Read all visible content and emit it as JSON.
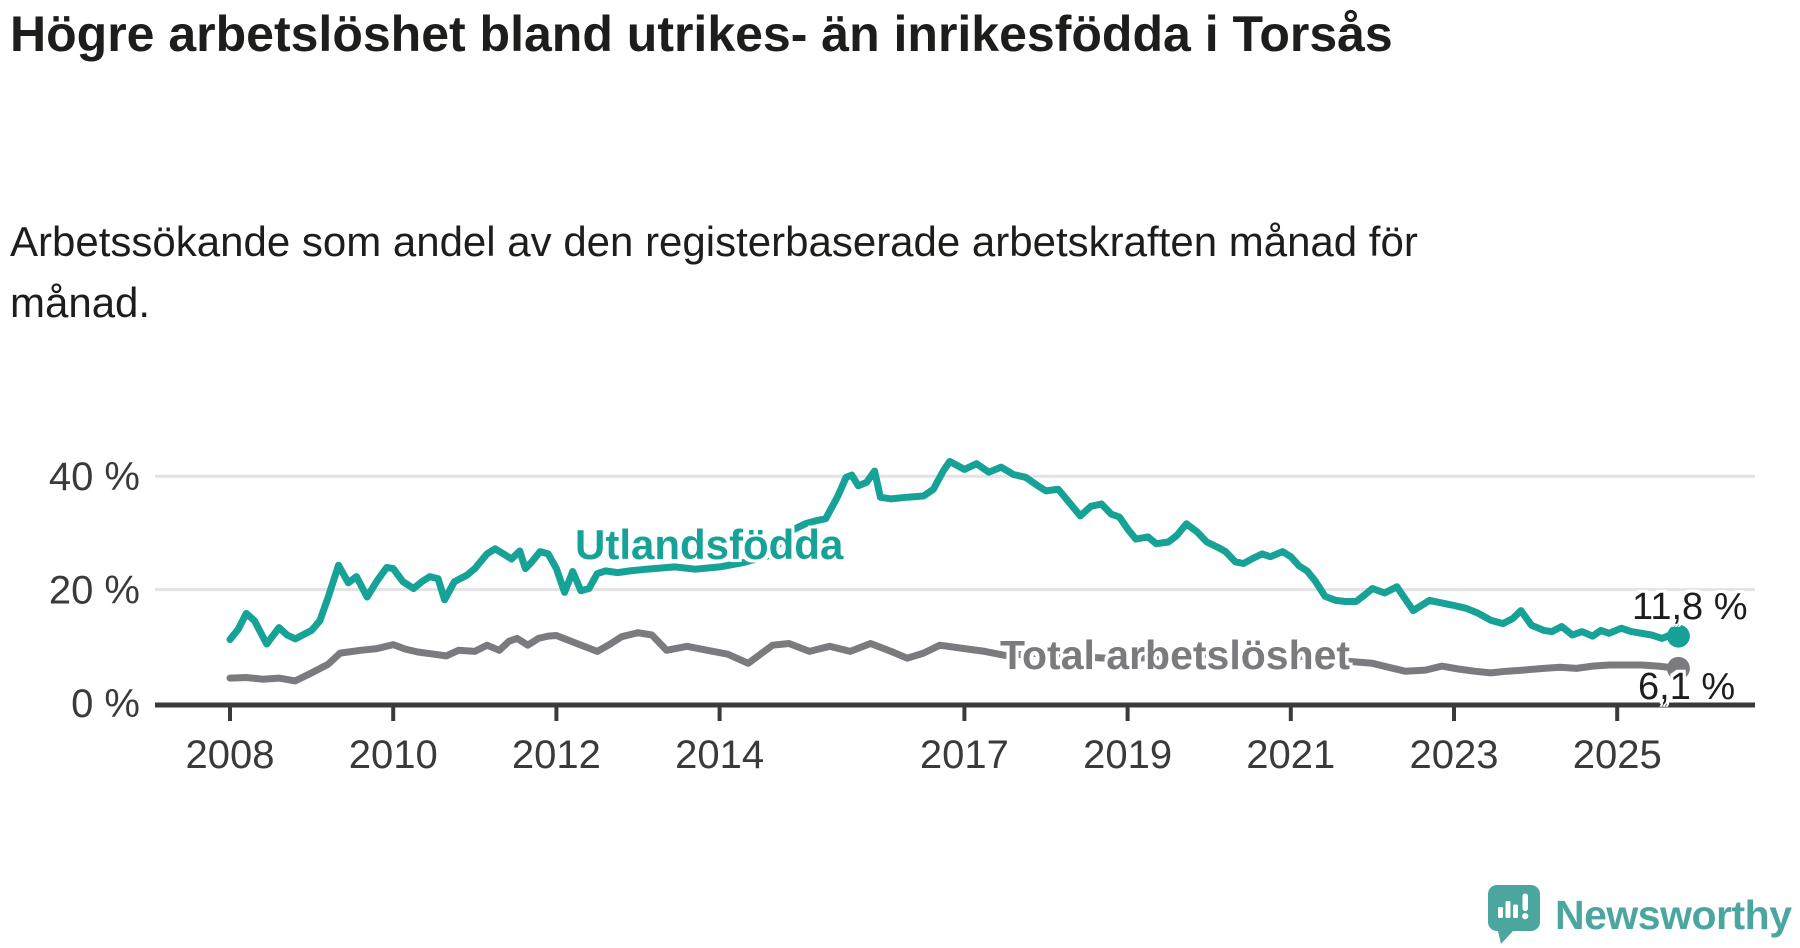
{
  "header": {
    "title": "Högre arbetslöshet bland utrikes- än inrikesfödda i Torsås",
    "subtitle": "Arbetssökande som andel av den registerbaserade arbetskraften månad för månad."
  },
  "footer": {
    "brand": "Newsworthy"
  },
  "colors": {
    "foreign_born_line": "#16a296",
    "total_line": "#7b7b7f",
    "axis": "#3a3a3a",
    "gridline": "#e3e3e3",
    "text": "#1d1d1b",
    "brand_teal": "#4ca6a0"
  },
  "chart_data": {
    "type": "line",
    "title": "Högre arbetslöshet bland utrikes- än inrikesfödda i Torsås",
    "subtitle": "Arbetssökande som andel av den registerbaserade arbetskraften månad för månad.",
    "xlabel": "",
    "ylabel": "",
    "xlim": [
      2007.6,
      2026.2
    ],
    "ylim": [
      0,
      45
    ],
    "grid": "horizontal",
    "legend_position": "inline-labels",
    "x_ticks": [
      {
        "value": 2008,
        "label": "2008"
      },
      {
        "value": 2010,
        "label": "2010"
      },
      {
        "value": 2012,
        "label": "2012"
      },
      {
        "value": 2014,
        "label": "2014"
      },
      {
        "value": 2017,
        "label": "2017"
      },
      {
        "value": 2019,
        "label": "2019"
      },
      {
        "value": 2021,
        "label": "2021"
      },
      {
        "value": 2023,
        "label": "2023"
      },
      {
        "value": 2025,
        "label": "2025"
      }
    ],
    "y_ticks": [
      {
        "value": 0,
        "label": "0 %"
      },
      {
        "value": 20,
        "label": "20 %"
      },
      {
        "value": 40,
        "label": "40 %"
      }
    ],
    "series": [
      {
        "name": "Utlandsfödda",
        "color": "#16a296",
        "end_label": "11,8 %",
        "end_value": 11.8,
        "points": [
          [
            2008.0,
            11.2
          ],
          [
            2008.1,
            13.0
          ],
          [
            2008.2,
            15.8
          ],
          [
            2008.3,
            14.5
          ],
          [
            2008.45,
            10.4
          ],
          [
            2008.6,
            13.3
          ],
          [
            2008.7,
            12.0
          ],
          [
            2008.8,
            11.3
          ],
          [
            2009.0,
            12.8
          ],
          [
            2009.1,
            14.5
          ],
          [
            2009.2,
            18.5
          ],
          [
            2009.33,
            24.3
          ],
          [
            2009.45,
            21.2
          ],
          [
            2009.55,
            22.3
          ],
          [
            2009.68,
            18.7
          ],
          [
            2009.8,
            21.5
          ],
          [
            2009.92,
            23.9
          ],
          [
            2010.0,
            23.7
          ],
          [
            2010.12,
            21.4
          ],
          [
            2010.25,
            20.2
          ],
          [
            2010.35,
            21.4
          ],
          [
            2010.45,
            22.3
          ],
          [
            2010.55,
            21.9
          ],
          [
            2010.63,
            18.2
          ],
          [
            2010.75,
            21.4
          ],
          [
            2010.9,
            22.5
          ],
          [
            2011.0,
            23.7
          ],
          [
            2011.15,
            26.3
          ],
          [
            2011.25,
            27.2
          ],
          [
            2011.35,
            26.3
          ],
          [
            2011.45,
            25.4
          ],
          [
            2011.55,
            26.8
          ],
          [
            2011.62,
            23.7
          ],
          [
            2011.7,
            24.9
          ],
          [
            2011.8,
            26.7
          ],
          [
            2011.9,
            26.3
          ],
          [
            2012.0,
            23.7
          ],
          [
            2012.1,
            19.5
          ],
          [
            2012.2,
            23.2
          ],
          [
            2012.3,
            19.8
          ],
          [
            2012.4,
            20.2
          ],
          [
            2012.5,
            22.8
          ],
          [
            2012.6,
            23.3
          ],
          [
            2012.75,
            23.0
          ],
          [
            2012.9,
            23.3
          ],
          [
            2013.1,
            23.6
          ],
          [
            2013.45,
            24.0
          ],
          [
            2013.7,
            23.6
          ],
          [
            2014.0,
            24.0
          ],
          [
            2014.3,
            24.8
          ],
          [
            2014.6,
            26.0
          ],
          [
            2014.85,
            30.2
          ],
          [
            2015.05,
            31.6
          ],
          [
            2015.2,
            32.2
          ],
          [
            2015.3,
            32.5
          ],
          [
            2015.45,
            36.5
          ],
          [
            2015.55,
            39.8
          ],
          [
            2015.62,
            40.2
          ],
          [
            2015.7,
            38.3
          ],
          [
            2015.8,
            38.9
          ],
          [
            2015.9,
            40.9
          ],
          [
            2015.97,
            36.3
          ],
          [
            2016.1,
            36.0
          ],
          [
            2016.3,
            36.3
          ],
          [
            2016.5,
            36.5
          ],
          [
            2016.62,
            37.7
          ],
          [
            2016.74,
            40.9
          ],
          [
            2016.82,
            42.6
          ],
          [
            2016.9,
            42.0
          ],
          [
            2017.0,
            41.2
          ],
          [
            2017.15,
            42.2
          ],
          [
            2017.3,
            40.7
          ],
          [
            2017.45,
            41.6
          ],
          [
            2017.6,
            40.3
          ],
          [
            2017.75,
            39.8
          ],
          [
            2017.9,
            38.3
          ],
          [
            2018.0,
            37.4
          ],
          [
            2018.15,
            37.7
          ],
          [
            2018.3,
            35.1
          ],
          [
            2018.42,
            33.0
          ],
          [
            2018.55,
            34.7
          ],
          [
            2018.68,
            35.1
          ],
          [
            2018.8,
            33.3
          ],
          [
            2018.9,
            32.8
          ],
          [
            2019.0,
            30.7
          ],
          [
            2019.1,
            28.9
          ],
          [
            2019.25,
            29.3
          ],
          [
            2019.35,
            28.1
          ],
          [
            2019.5,
            28.4
          ],
          [
            2019.6,
            29.5
          ],
          [
            2019.72,
            31.6
          ],
          [
            2019.85,
            30.2
          ],
          [
            2019.97,
            28.4
          ],
          [
            2020.1,
            27.5
          ],
          [
            2020.2,
            26.7
          ],
          [
            2020.32,
            24.9
          ],
          [
            2020.42,
            24.6
          ],
          [
            2020.52,
            25.4
          ],
          [
            2020.65,
            26.3
          ],
          [
            2020.75,
            25.8
          ],
          [
            2020.9,
            26.7
          ],
          [
            2021.0,
            25.8
          ],
          [
            2021.1,
            24.2
          ],
          [
            2021.2,
            23.3
          ],
          [
            2021.3,
            21.5
          ],
          [
            2021.42,
            18.8
          ],
          [
            2021.55,
            18.1
          ],
          [
            2021.67,
            17.9
          ],
          [
            2021.8,
            17.9
          ],
          [
            2021.9,
            19.0
          ],
          [
            2022.0,
            20.2
          ],
          [
            2022.15,
            19.4
          ],
          [
            2022.3,
            20.5
          ],
          [
            2022.5,
            16.3
          ],
          [
            2022.7,
            18.1
          ],
          [
            2022.9,
            17.5
          ],
          [
            2023.0,
            17.2
          ],
          [
            2023.15,
            16.7
          ],
          [
            2023.3,
            15.8
          ],
          [
            2023.45,
            14.6
          ],
          [
            2023.6,
            14.0
          ],
          [
            2023.72,
            14.9
          ],
          [
            2023.82,
            16.3
          ],
          [
            2023.95,
            13.7
          ],
          [
            2024.1,
            12.8
          ],
          [
            2024.2,
            12.6
          ],
          [
            2024.32,
            13.5
          ],
          [
            2024.45,
            12.0
          ],
          [
            2024.57,
            12.6
          ],
          [
            2024.7,
            11.8
          ],
          [
            2024.8,
            12.8
          ],
          [
            2024.9,
            12.3
          ],
          [
            2025.05,
            13.2
          ],
          [
            2025.17,
            12.6
          ],
          [
            2025.3,
            12.3
          ],
          [
            2025.42,
            12.0
          ],
          [
            2025.55,
            11.4
          ],
          [
            2025.65,
            12.0
          ],
          [
            2025.75,
            11.8
          ]
        ]
      },
      {
        "name": "Total arbetslöshet",
        "color": "#7b7b7f",
        "end_label": "6,1 %",
        "end_value": 6.1,
        "points": [
          [
            2008.0,
            4.4
          ],
          [
            2008.2,
            4.5
          ],
          [
            2008.4,
            4.2
          ],
          [
            2008.6,
            4.4
          ],
          [
            2008.8,
            3.9
          ],
          [
            2009.0,
            5.3
          ],
          [
            2009.2,
            6.8
          ],
          [
            2009.35,
            8.8
          ],
          [
            2009.6,
            9.3
          ],
          [
            2009.8,
            9.6
          ],
          [
            2010.0,
            10.3
          ],
          [
            2010.15,
            9.5
          ],
          [
            2010.3,
            9.0
          ],
          [
            2010.5,
            8.6
          ],
          [
            2010.65,
            8.3
          ],
          [
            2010.8,
            9.3
          ],
          [
            2011.0,
            9.1
          ],
          [
            2011.15,
            10.2
          ],
          [
            2011.3,
            9.3
          ],
          [
            2011.42,
            10.9
          ],
          [
            2011.52,
            11.4
          ],
          [
            2011.65,
            10.2
          ],
          [
            2011.78,
            11.4
          ],
          [
            2011.9,
            11.8
          ],
          [
            2012.0,
            11.9
          ],
          [
            2012.25,
            10.5
          ],
          [
            2012.5,
            9.1
          ],
          [
            2012.65,
            10.3
          ],
          [
            2012.8,
            11.7
          ],
          [
            2013.0,
            12.4
          ],
          [
            2013.17,
            12.0
          ],
          [
            2013.35,
            9.3
          ],
          [
            2013.6,
            10.0
          ],
          [
            2013.85,
            9.3
          ],
          [
            2014.1,
            8.6
          ],
          [
            2014.35,
            7.0
          ],
          [
            2014.65,
            10.2
          ],
          [
            2014.85,
            10.5
          ],
          [
            2015.1,
            9.1
          ],
          [
            2015.35,
            10.0
          ],
          [
            2015.6,
            9.1
          ],
          [
            2015.85,
            10.5
          ],
          [
            2016.1,
            9.1
          ],
          [
            2016.3,
            7.9
          ],
          [
            2016.5,
            8.8
          ],
          [
            2016.7,
            10.2
          ],
          [
            2017.0,
            9.6
          ],
          [
            2017.25,
            9.1
          ],
          [
            2017.5,
            8.4
          ],
          [
            2017.75,
            8.6
          ],
          [
            2018.0,
            8.9
          ],
          [
            2018.25,
            8.4
          ],
          [
            2018.5,
            8.1
          ],
          [
            2018.75,
            7.9
          ],
          [
            2019.0,
            7.8
          ],
          [
            2019.25,
            8.0
          ],
          [
            2019.5,
            8.3
          ],
          [
            2019.75,
            8.4
          ],
          [
            2020.0,
            8.6
          ],
          [
            2020.25,
            8.9
          ],
          [
            2020.5,
            9.1
          ],
          [
            2020.75,
            8.8
          ],
          [
            2021.0,
            8.4
          ],
          [
            2021.25,
            8.0
          ],
          [
            2021.5,
            7.6
          ],
          [
            2021.75,
            7.3
          ],
          [
            2022.0,
            7.0
          ],
          [
            2022.2,
            6.3
          ],
          [
            2022.4,
            5.6
          ],
          [
            2022.65,
            5.8
          ],
          [
            2022.85,
            6.5
          ],
          [
            2023.05,
            6.0
          ],
          [
            2023.25,
            5.6
          ],
          [
            2023.45,
            5.3
          ],
          [
            2023.65,
            5.6
          ],
          [
            2023.85,
            5.8
          ],
          [
            2024.1,
            6.1
          ],
          [
            2024.3,
            6.3
          ],
          [
            2024.5,
            6.1
          ],
          [
            2024.7,
            6.5
          ],
          [
            2024.9,
            6.7
          ],
          [
            2025.1,
            6.7
          ],
          [
            2025.3,
            6.7
          ],
          [
            2025.5,
            6.5
          ],
          [
            2025.75,
            6.1
          ]
        ]
      }
    ]
  }
}
